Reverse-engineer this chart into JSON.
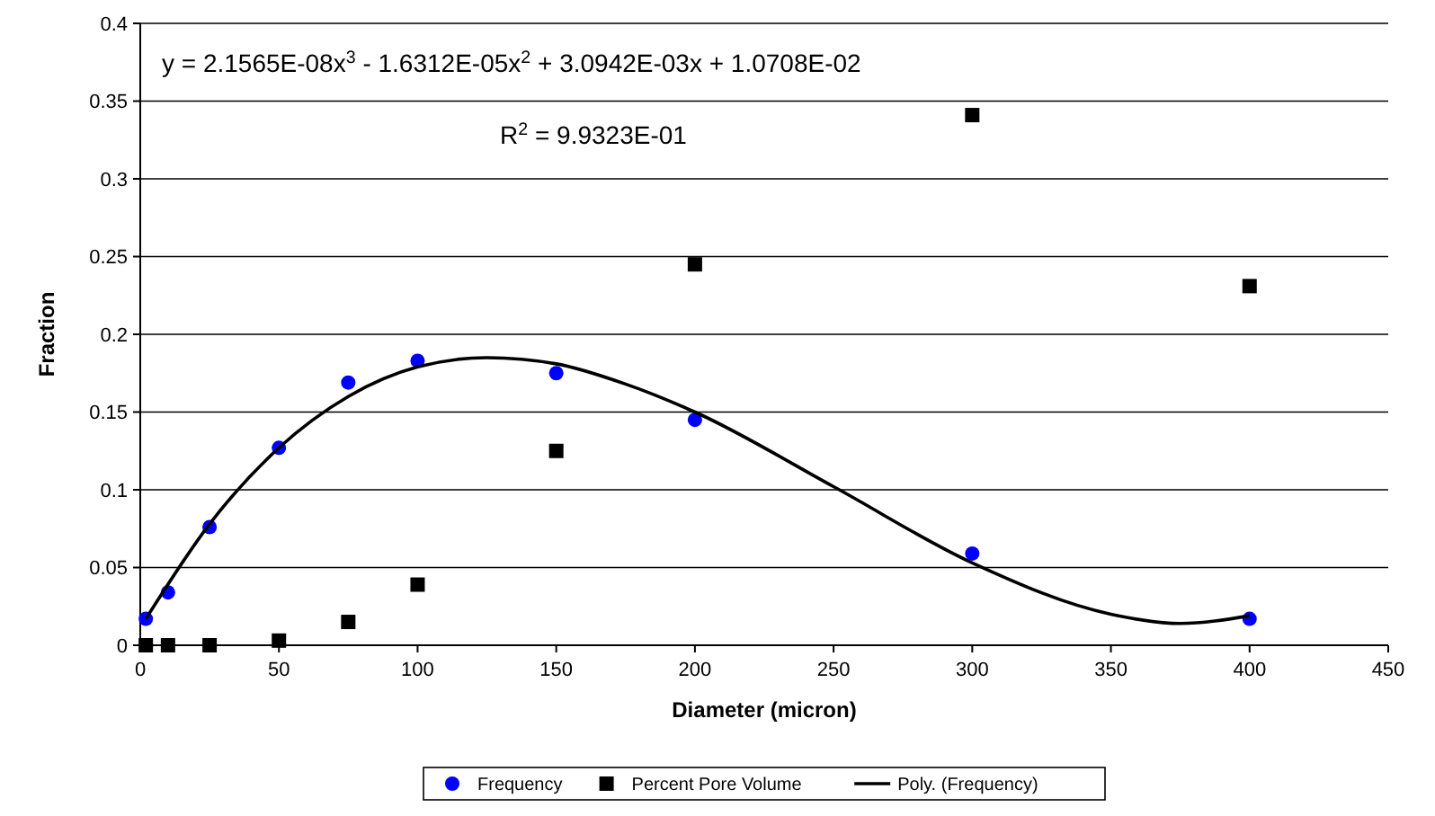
{
  "chart_data": {
    "type": "scatter",
    "xlabel": "Diameter (micron)",
    "ylabel": "Fraction",
    "xlim": [
      0,
      450
    ],
    "xticks": [
      0,
      50,
      100,
      150,
      200,
      250,
      300,
      350,
      400,
      450
    ],
    "ylim": [
      0,
      0.4
    ],
    "yticks": [
      0,
      0.05,
      0.1,
      0.15,
      0.2,
      0.25,
      0.3,
      0.35,
      0.4
    ],
    "grid": "y",
    "legend": "bottom",
    "annotations": [
      "y = 2.1565E-08x$^{3}$ - 1.6312E-05x$^{2}$ + 3.0942E-03x + 1.0708E-02",
      "R$^{2}$ = 9.9323E-01"
    ],
    "series": [
      {
        "name": "Frequency",
        "type": "scatter",
        "marker": "circle",
        "color": "#0000ff",
        "x": [
          2,
          10,
          25,
          50,
          75,
          100,
          150,
          200,
          300,
          400
        ],
        "values": [
          0.017,
          0.034,
          0.076,
          0.127,
          0.169,
          0.183,
          0.175,
          0.145,
          0.059,
          0.017
        ]
      },
      {
        "name": "Percent Pore Volume",
        "type": "scatter",
        "marker": "square",
        "color": "#000000",
        "x": [
          2,
          10,
          25,
          50,
          75,
          100,
          150,
          200,
          300,
          400
        ],
        "values": [
          0,
          0,
          0,
          0.003,
          0.015,
          0.039,
          0.125,
          0.245,
          0.341,
          0.231
        ]
      },
      {
        "name": "Poly. (Frequency)",
        "type": "line",
        "marker": "none",
        "line_style": "solid",
        "color": "#000000",
        "x": [
          2,
          25,
          50,
          75,
          100,
          125,
          150,
          175,
          200,
          250,
          300,
          350,
          375,
          400
        ],
        "values": [
          0.017,
          0.078,
          0.127,
          0.16,
          0.179,
          0.185,
          0.181,
          0.168,
          0.15,
          0.102,
          0.053,
          0.02,
          0.014,
          0.019
        ]
      }
    ]
  }
}
